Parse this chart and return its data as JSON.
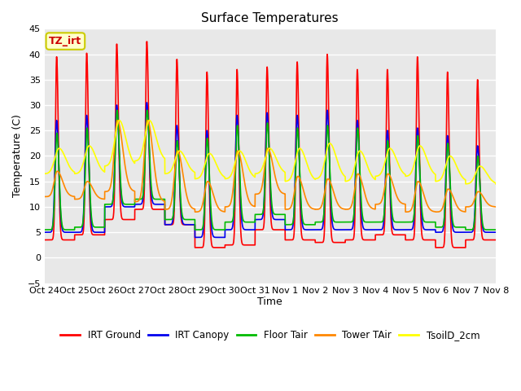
{
  "title": "Surface Temperatures",
  "ylabel": "Temperature (C)",
  "xlabel": "Time",
  "ylim": [
    -5,
    45
  ],
  "yticks": [
    -5,
    0,
    5,
    10,
    15,
    20,
    25,
    30,
    35,
    40,
    45
  ],
  "x_labels": [
    "Oct 24",
    "Oct 25",
    "Oct 26",
    "Oct 27",
    "Oct 28",
    "Oct 29",
    "Oct 30",
    "Oct 31",
    "Nov 1",
    "Nov 2",
    "Nov 3",
    "Nov 4",
    "Nov 5",
    "Nov 6",
    "Nov 7",
    "Nov 8"
  ],
  "series_colors": {
    "IRT Ground": "#ff0000",
    "IRT Canopy": "#0000ee",
    "Floor Tair": "#00bb00",
    "Tower TAir": "#ff8800",
    "TsoilD_2cm": "#ffff00"
  },
  "annotation_text": "TZ_irt",
  "annotation_color": "#cc0000",
  "annotation_bbox_facecolor": "#ffffcc",
  "annotation_bbox_edgecolor": "#cccc00",
  "background_color": "#e8e8e8",
  "grid_color": "#ffffff",
  "n_days": 15,
  "pts_per_day": 288,
  "day_peaks_irt_ground": [
    39.5,
    40.2,
    42.0,
    42.5,
    39.0,
    36.5,
    37.0,
    37.5,
    38.5,
    40.0,
    37.0,
    37.0,
    39.5,
    36.5,
    35.0
  ],
  "day_min_irt_ground": [
    3.5,
    4.5,
    7.5,
    9.5,
    6.5,
    2.0,
    2.5,
    5.5,
    3.5,
    3.0,
    3.5,
    4.5,
    3.5,
    2.0,
    3.5
  ],
  "day_peaks_canopy": [
    27.0,
    28.0,
    30.0,
    30.5,
    26.0,
    25.0,
    28.0,
    28.5,
    28.0,
    29.0,
    27.0,
    25.0,
    25.5,
    24.0,
    22.0
  ],
  "day_min_canopy": [
    5.0,
    5.0,
    10.0,
    10.5,
    6.5,
    4.0,
    5.5,
    7.5,
    5.5,
    5.5,
    5.5,
    5.5,
    5.5,
    5.0,
    5.0
  ],
  "day_peaks_floor": [
    24.5,
    25.5,
    29.0,
    29.0,
    23.0,
    23.5,
    26.0,
    26.5,
    25.5,
    26.0,
    25.5,
    23.0,
    24.0,
    22.5,
    20.0
  ],
  "day_min_floor": [
    5.5,
    6.0,
    10.5,
    11.5,
    7.5,
    5.5,
    7.0,
    8.5,
    6.5,
    7.0,
    7.0,
    7.0,
    7.0,
    6.0,
    5.5
  ],
  "day_peaks_tower": [
    17.0,
    15.0,
    27.0,
    27.0,
    21.0,
    15.0,
    21.0,
    21.5,
    16.0,
    15.5,
    16.5,
    16.5,
    15.0,
    13.5,
    13.0
  ],
  "day_min_tower": [
    12.0,
    11.5,
    13.0,
    11.0,
    9.5,
    9.0,
    10.0,
    12.5,
    9.5,
    9.5,
    9.5,
    10.5,
    9.0,
    9.0,
    10.0
  ],
  "day_peaks_tsoil": [
    21.5,
    22.0,
    27.0,
    27.0,
    21.0,
    20.5,
    21.0,
    21.5,
    21.5,
    22.5,
    21.0,
    21.5,
    22.0,
    20.0,
    18.0
  ],
  "day_min_tsoil": [
    16.5,
    16.5,
    18.0,
    19.0,
    16.5,
    15.5,
    15.5,
    16.5,
    15.0,
    15.5,
    15.0,
    16.0,
    16.0,
    15.0,
    14.5
  ]
}
